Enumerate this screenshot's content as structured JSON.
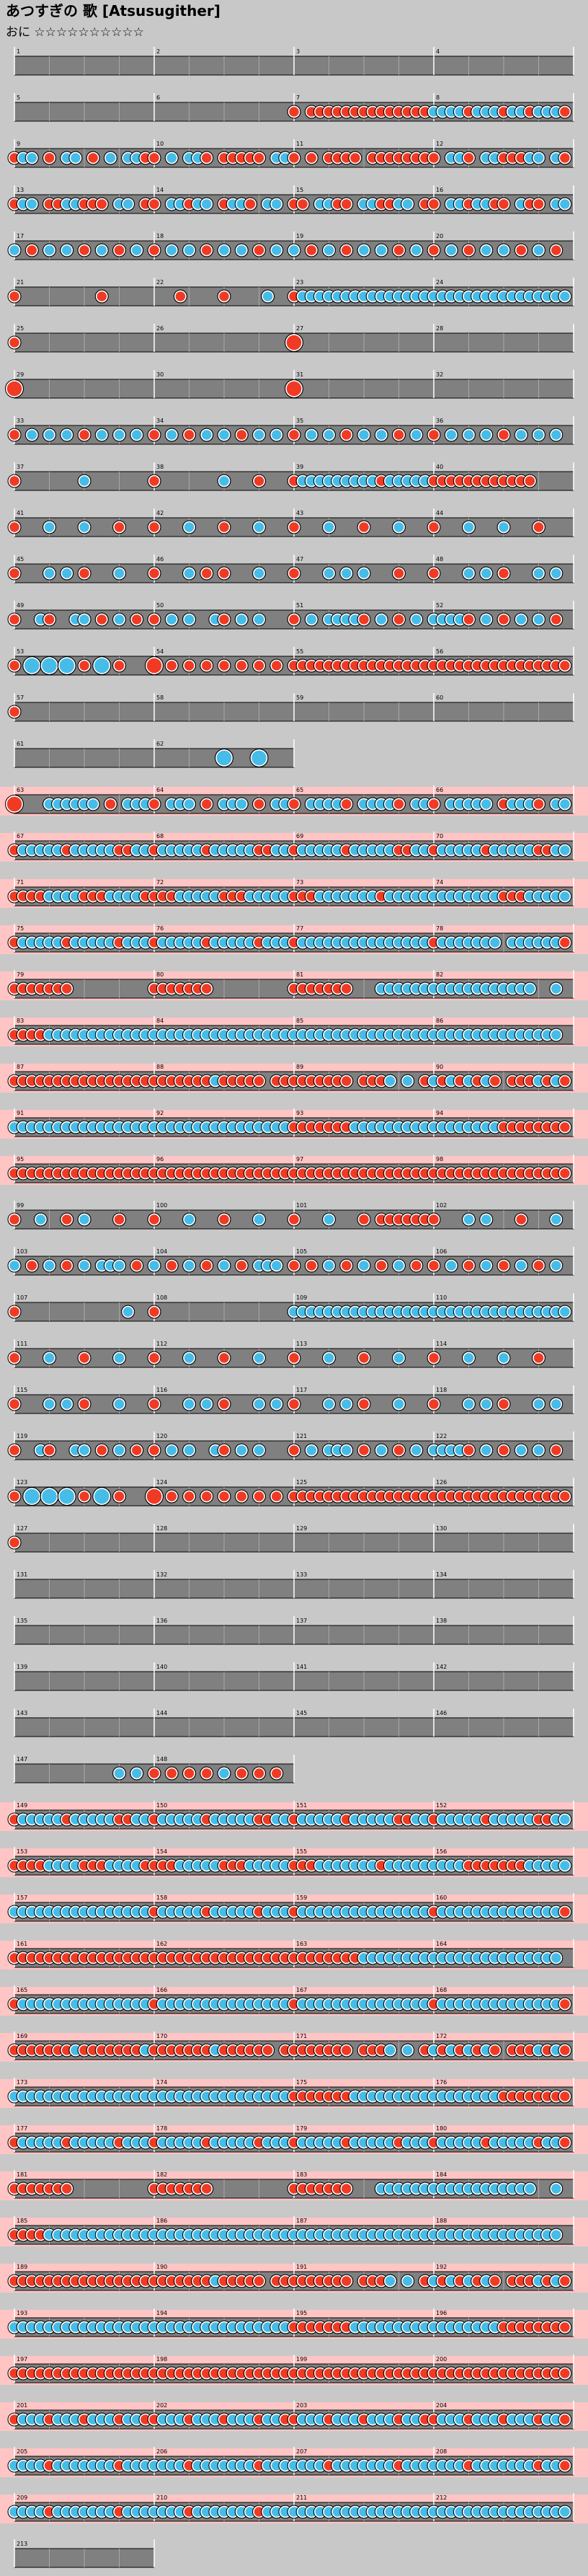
{
  "header": {
    "title": "あつすぎの 歌 [Atsusugither]",
    "difficulty": "おに ☆☆☆☆☆☆☆☆☆☆"
  },
  "rows": [
    {
      "gogo": false,
      "m": [
        [
          "1",
          "0"
        ],
        [
          "2",
          "0"
        ],
        [
          "3",
          "0"
        ],
        [
          "4",
          "0"
        ]
      ]
    },
    {
      "gogo": false,
      "m": [
        [
          "5",
          "0"
        ],
        [
          "6",
          "0"
        ],
        [
          "7",
          "d0dddddddddddddd"
        ],
        [
          "8",
          "kkkkdkkkdkkdkkkd"
        ]
      ]
    },
    {
      "gogo": false,
      "m": [
        [
          "9",
          "dkk0d0kk0d0k0kkd"
        ],
        [
          "10",
          "d0k0kkd0ddddd0kk"
        ],
        [
          "11",
          "d0d0dddd0ddddddd"
        ],
        [
          "12",
          "d0kkd0kkdddkk0kd"
        ]
      ]
    },
    {
      "gogo": false,
      "m": [
        [
          "13",
          "dkk0ddkkddd0kk0d"
        ],
        [
          "14",
          "d0kkdkk0dkkd0kk0"
        ],
        [
          "15",
          "dd0kkdd0kkddkk0d"
        ],
        [
          "16",
          "d0kkdkkdd0kdd0kk"
        ]
      ]
    },
    {
      "gogo": false,
      "m": [
        [
          "17",
          "k0d0k0k0d0k0d0k0"
        ],
        [
          "18",
          "d0k0k0d0k0k0d0k0"
        ],
        [
          "19",
          "k0d0k0d0k0k0d0k0"
        ],
        [
          "20",
          "d0k0d0k0k0d0k0d0"
        ]
      ]
    },
    {
      "gogo": false,
      "m": [
        [
          "21",
          "d000000000d00000"
        ],
        [
          "22",
          "000d0000d0000k00"
        ],
        [
          "23",
          "dkkkkkkkkkkkkkkk"
        ],
        [
          "24",
          "kkkkkkkkkkkkkkkk"
        ]
      ]
    },
    {
      "gogo": false,
      "m": [
        [
          "25",
          "d000"
        ],
        [
          "26",
          "0000"
        ],
        [
          "27",
          "D000"
        ],
        [
          "28",
          "0000"
        ]
      ]
    },
    {
      "gogo": false,
      "m": [
        [
          "29",
          "D000"
        ],
        [
          "30",
          "0000"
        ],
        [
          "31",
          "D000"
        ],
        [
          "32",
          "0000"
        ]
      ]
    },
    {
      "gogo": false,
      "m": [
        [
          "33",
          "d0k0k0k0d0k0k0k0"
        ],
        [
          "34",
          "d0k0d0k0k0d0k0k0"
        ],
        [
          "35",
          "d0k0k0d0k0k0d0k0"
        ],
        [
          "36",
          "d0k0k0k0d0k0k0k0"
        ]
      ]
    },
    {
      "gogo": false,
      "m": [
        [
          "37",
          "d0000000k0000000"
        ],
        [
          "38",
          "d0000000k000d000"
        ],
        [
          "39",
          "dkkkkkkkkkdkkkkk"
        ],
        [
          "40",
          "dddddddddddd0000"
        ]
      ]
    },
    {
      "gogo": false,
      "m": [
        [
          "41",
          "d000k000k000d000"
        ],
        [
          "42",
          "d000k000d000k000"
        ],
        [
          "43",
          "d000k000d000k000"
        ],
        [
          "44",
          "d000k000k000d000"
        ]
      ]
    },
    {
      "gogo": false,
      "m": [
        [
          "45",
          "d000k0k0d000k000"
        ],
        [
          "46",
          "d000k0d0d000k000"
        ],
        [
          "47",
          "d000k0k0k000d000"
        ],
        [
          "48",
          "d000k0k0d000k0k0"
        ]
      ]
    },
    {
      "gogo": false,
      "m": [
        [
          "49",
          "d00kd00kk0d0k0d0"
        ],
        [
          "50",
          "d0k0k00kd0k0k000"
        ],
        [
          "51",
          "d0k0kkkkd0k0d0k0"
        ],
        [
          "52",
          "kkkkd0k0d0k0k0d0"
        ]
      ]
    },
    {
      "gogo": false,
      "m": [
        [
          "53",
          "dKKKdKd0"
        ],
        [
          "54",
          "Dddddddd"
        ],
        [
          "55",
          "dddddddddddddddd"
        ],
        [
          "56",
          "dddddddddddddddd"
        ]
      ]
    },
    {
      "gogo": false,
      "m": [
        [
          "57",
          "d000"
        ],
        [
          "58",
          "0000"
        ],
        [
          "59",
          "0000"
        ],
        [
          "60",
          "0000"
        ]
      ]
    },
    {
      "gogo": false,
      "m": [
        [
          "61",
          "0"
        ],
        [
          "62",
          "0000K0K0"
        ]
      ]
    },
    {
      "gogo": true,
      "m": [
        [
          "63",
          "D000kkkkkk0d0kkk"
        ],
        [
          "64",
          "d0kkk0d0kkk0d0kk"
        ],
        [
          "65",
          "d0kkkkd0kkkkd0kk"
        ],
        [
          "66",
          "d0kkkkk0dkkkd0kk"
        ]
      ]
    },
    {
      "gogo": true,
      "m": [
        [
          "67",
          "dkkkkkdkkkkkddkk"
        ],
        [
          "68",
          "dkkkkkdkkkkkddkk"
        ],
        [
          "69",
          "dkkkkkdkkkkkddkk"
        ],
        [
          "70",
          "dkkkkkdkkkkkddkk"
        ]
      ]
    },
    {
      "gogo": true,
      "m": [
        [
          "71",
          "ddddkkkkdddkkkkd"
        ],
        [
          "72",
          "dddkkkkkdddkkkkk"
        ],
        [
          "73",
          "dddkkkkkkkdkkkkk"
        ],
        [
          "74",
          "kkkkkkkkdddkkkkk"
        ]
      ]
    },
    {
      "gogo": true,
      "m": [
        [
          "75",
          "dkkkkkdkkkkkdkkk"
        ],
        [
          "76",
          "dkkkkkdkkkkkdkkk"
        ],
        [
          "77",
          "dkkkkkkkkkkkkkkk"
        ],
        [
          "78",
          "dkkkkkkk0kkkkkkd"
        ]
      ]
    },
    {
      "gogo": true,
      "m": [
        [
          "79",
          "ddddddd000000000"
        ],
        [
          "80",
          "ddddddd000000000"
        ],
        [
          "81",
          "ddddddd000kkkkkk"
        ],
        [
          "82",
          "kkkkkkkkkkkk00k0"
        ]
      ]
    },
    {
      "gogo": true,
      "m": [
        [
          "83",
          "ddddkkkkkkkkkkkk"
        ],
        [
          "84",
          "kkkkkkkkkkkkkkkk"
        ],
        [
          "85",
          "kkkkkkkkkkkkkkkk"
        ],
        [
          "86",
          "kkkkkkkkkkkkkkk0"
        ]
      ]
    },
    {
      "gogo": true,
      "m": [
        [
          "87",
          "dddddddddddddddd"
        ],
        [
          "88",
          "dddddddkddddd0dd"
        ],
        [
          "89",
          "ddddddd0dddk0k0d"
        ],
        [
          "90",
          "kdkdkdkd0dddkdkd"
        ]
      ]
    },
    {
      "gogo": true,
      "m": [
        [
          "91",
          "kkkkkkkkkkkkkkkk"
        ],
        [
          "92",
          "kkkkkkkkkkkkkkkk"
        ],
        [
          "93",
          "dddddddkkkkkkkkk"
        ],
        [
          "94",
          "kkkkkkkkdddddddd"
        ]
      ]
    },
    {
      "gogo": true,
      "m": [
        [
          "95",
          "dddddddddddddddd"
        ],
        [
          "96",
          "dddddddddddddddd"
        ],
        [
          "97",
          "dddddddddddddddd"
        ],
        [
          "98",
          "dddddddddddddddd"
        ]
      ]
    },
    {
      "gogo": false,
      "m": [
        [
          "99",
          "d00k00d0k000d000"
        ],
        [
          "100",
          "d000k000d000k000"
        ],
        [
          "101",
          "d000k000d0dddddd"
        ],
        [
          "102",
          "d000k0k000d000k0"
        ]
      ]
    },
    {
      "gogo": false,
      "m": [
        [
          "103",
          "k0d0k0d0k0kkk0d0"
        ],
        [
          "104",
          "k0d0k0d0k0d0kkk0"
        ],
        [
          "105",
          "d0d0k0d0k0d0k0d0"
        ],
        [
          "106",
          "d0k0d0k0d0k0d0k0"
        ]
      ]
    },
    {
      "gogo": false,
      "m": [
        [
          "107",
          "d000000000000k00"
        ],
        [
          "108",
          "d000000000000000"
        ],
        [
          "109",
          "kkkkkkkkkkkkkkkk"
        ],
        [
          "110",
          "kkkkkkkkkkkkkkkk"
        ]
      ]
    },
    {
      "gogo": false,
      "m": [
        [
          "111",
          "d000k000d000k000"
        ],
        [
          "112",
          "d000k000d000k000"
        ],
        [
          "113",
          "d000k000d000k000"
        ],
        [
          "114",
          "d000k000k000d000"
        ]
      ]
    },
    {
      "gogo": false,
      "m": [
        [
          "115",
          "d000k0k0d000k000"
        ],
        [
          "116",
          "d000k0k0d000k0k0"
        ],
        [
          "117",
          "d000k0k0d000k000"
        ],
        [
          "118",
          "d000k0k0d000k0k0"
        ]
      ]
    },
    {
      "gogo": false,
      "m": [
        [
          "119",
          "d00kd00kk0d0k0d0"
        ],
        [
          "120",
          "d0k0k00kd0k0k000"
        ],
        [
          "121",
          "d0k0kkk0d0k0d0k0"
        ],
        [
          "122",
          "kkkkd0k0d0k0k0d0"
        ]
      ]
    },
    {
      "gogo": false,
      "m": [
        [
          "123",
          "dKKKdKd0"
        ],
        [
          "124",
          "Dddddddd"
        ],
        [
          "125",
          "dddddddddddddddd"
        ],
        [
          "126",
          "dddddddddddddddd"
        ]
      ]
    },
    {
      "gogo": false,
      "m": [
        [
          "127",
          "d000"
        ],
        [
          "128",
          "0000"
        ],
        [
          "129",
          "0000"
        ],
        [
          "130",
          "0000"
        ]
      ]
    },
    {
      "gogo": false,
      "m": [
        [
          "131",
          "0"
        ],
        [
          "132",
          "0"
        ],
        [
          "133",
          "0"
        ],
        [
          "134",
          "0"
        ]
      ]
    },
    {
      "gogo": false,
      "m": [
        [
          "135",
          "0"
        ],
        [
          "136",
          "0"
        ],
        [
          "137",
          "0"
        ],
        [
          "138",
          "0"
        ]
      ]
    },
    {
      "gogo": false,
      "m": [
        [
          "139",
          "0"
        ],
        [
          "140",
          "0"
        ],
        [
          "141",
          "0"
        ],
        [
          "142",
          "0"
        ]
      ]
    },
    {
      "gogo": false,
      "m": [
        [
          "143",
          "0"
        ],
        [
          "144",
          "0"
        ],
        [
          "145",
          "0"
        ],
        [
          "146",
          "0"
        ]
      ]
    },
    {
      "gogo": false,
      "m": [
        [
          "147",
          "000000kk"
        ],
        [
          "148",
          "ddddkddd"
        ]
      ]
    },
    {
      "gogo": true,
      "m": [
        [
          "149",
          "dkkkkkdkkkkkddkk"
        ],
        [
          "150",
          "dkkkkkdkkkkkddkk"
        ],
        [
          "151",
          "dkkkkkdkkkkkddkk"
        ],
        [
          "152",
          "dkkkkkdkkkkkddkk"
        ]
      ]
    },
    {
      "gogo": true,
      "m": [
        [
          "153",
          "ddddkkkkdddkkkkd"
        ],
        [
          "154",
          "dddkkkkkdddkkkkk"
        ],
        [
          "155",
          "dddkkkkkkkdkkkkk"
        ],
        [
          "156",
          "kkkkdddddddkkkkk"
        ]
      ]
    },
    {
      "gogo": true,
      "m": [
        [
          "157",
          "kkkkkkkkkkkkkkkk"
        ],
        [
          "158",
          "dkkkkkdkkkkkdkkk"
        ],
        [
          "159",
          "dkkkkkkkkkkkkkkk"
        ],
        [
          "160",
          "dkkkkkkkkkkkkkkd"
        ]
      ]
    },
    {
      "gogo": true,
      "m": [
        [
          "161",
          "dddddddddddddddd"
        ],
        [
          "162",
          "dddddddddddddddd"
        ],
        [
          "163",
          "ddddddddkkkkkkkk"
        ],
        [
          "164",
          "kkkkkkkkkkkkkkk0"
        ]
      ]
    },
    {
      "gogo": true,
      "m": [
        [
          "165",
          "dkkkkkkkkkkkkkkk"
        ],
        [
          "166",
          "dkkkkkkkkkkkkkkk"
        ],
        [
          "167",
          "dkkkkkkkkkkkkkkk"
        ],
        [
          "168",
          "dkkkkkkkkkkkkkkd"
        ]
      ]
    },
    {
      "gogo": true,
      "m": [
        [
          "169",
          "dddddddkdddddddk"
        ],
        [
          "170",
          "dddddddkdddddd0d"
        ],
        [
          "171",
          "ddddddd0dddk0k0d"
        ],
        [
          "172",
          "kdkdkdkd0dddkdkd"
        ]
      ]
    },
    {
      "gogo": true,
      "m": [
        [
          "173",
          "kkkkkkkkkkkkkkkk"
        ],
        [
          "174",
          "kkkkkkkkkkkkkkkk"
        ],
        [
          "175",
          "dddddddkkkkkkkkk"
        ],
        [
          "176",
          "kkkkkkkkdddddddd"
        ]
      ]
    },
    {
      "gogo": true,
      "m": [
        [
          "177",
          "dkkkkkdkkkkkdkkk"
        ],
        [
          "178",
          "dkkkkkdkkkkkdkkk"
        ],
        [
          "179",
          "dkkkkkdkkkkkdkkk"
        ],
        [
          "180",
          "dkkkkkdkkkkkdkkd"
        ]
      ]
    },
    {
      "gogo": true,
      "m": [
        [
          "181",
          "ddddddd000000000"
        ],
        [
          "182",
          "ddddddd000000000"
        ],
        [
          "183",
          "ddddddd000kkkkkk"
        ],
        [
          "184",
          "kkkkkkkkkkkk00k0"
        ]
      ]
    },
    {
      "gogo": true,
      "m": [
        [
          "185",
          "ddddkkkkkkkkkkkk"
        ],
        [
          "186",
          "kkkkkkkkkkkkkkkk"
        ],
        [
          "187",
          "kkkkkkkkkkkkkkkk"
        ],
        [
          "188",
          "kkkkkkkkkkkkkkk0"
        ]
      ]
    },
    {
      "gogo": true,
      "m": [
        [
          "189",
          "dddddddddddddddd"
        ],
        [
          "190",
          "dddddddkddddd0dd"
        ],
        [
          "191",
          "ddddddd0dddk0k0d"
        ],
        [
          "192",
          "kdkdkdkd0dddkdkd"
        ]
      ]
    },
    {
      "gogo": true,
      "m": [
        [
          "193",
          "kkkkkkkkkkkkkkkk"
        ],
        [
          "194",
          "kkkkkkkkkkkkkkkk"
        ],
        [
          "195",
          "dddddddkkkkkkkkk"
        ],
        [
          "196",
          "kkkkkkkkdddddddd"
        ]
      ]
    },
    {
      "gogo": true,
      "m": [
        [
          "197",
          "dddddddddddddddd"
        ],
        [
          "198",
          "dddddddddddddddd"
        ],
        [
          "199",
          "dddddddddddddddd"
        ],
        [
          "200",
          "dddddddddddddddd"
        ]
      ]
    },
    {
      "gogo": true,
      "m": [
        [
          "201",
          "dkkkdkkkdkkkdkkd"
        ],
        [
          "202",
          "dkkkdkkkdkkkdkkd"
        ],
        [
          "203",
          "dkkkdkkkdkkkdkkd"
        ],
        [
          "204",
          "dkkkdkkkdkkkdkkd"
        ]
      ]
    },
    {
      "gogo": true,
      "m": [
        [
          "205",
          "kkkkdkkkkkkkdkkk"
        ],
        [
          "206",
          "kkkkdkkkkkkkdkkk"
        ],
        [
          "207",
          "kkkkdkkkkkkkdkkk"
        ],
        [
          "208",
          "kkkkdkkkkkkkdkkd"
        ]
      ]
    },
    {
      "gogo": true,
      "m": [
        [
          "209",
          "kkkkdkkkkkkkdkkk"
        ],
        [
          "210",
          "kkkkdkkkkkkkdkkk"
        ],
        [
          "211",
          "kkkkkkkkkkkkkkkk"
        ],
        [
          "212",
          "kkkkkkkkkkkkkkkk"
        ]
      ]
    },
    {
      "gogo": false,
      "m": [
        [
          "213",
          "0"
        ]
      ]
    }
  ]
}
